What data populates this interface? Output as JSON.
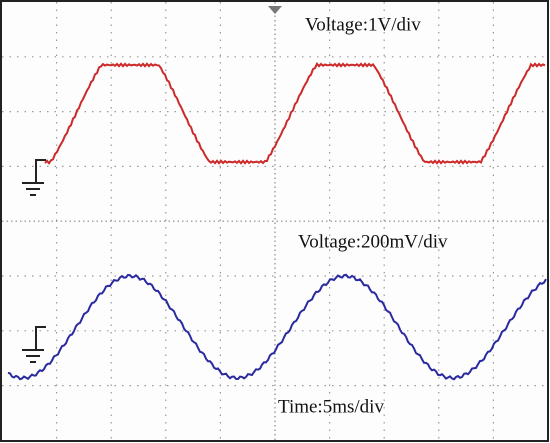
{
  "labels": {
    "channel1_scale": "Voltage:1V/div",
    "channel2_scale": "Voltage:200mV/div",
    "timebase": "Time:5ms/div"
  }
}
